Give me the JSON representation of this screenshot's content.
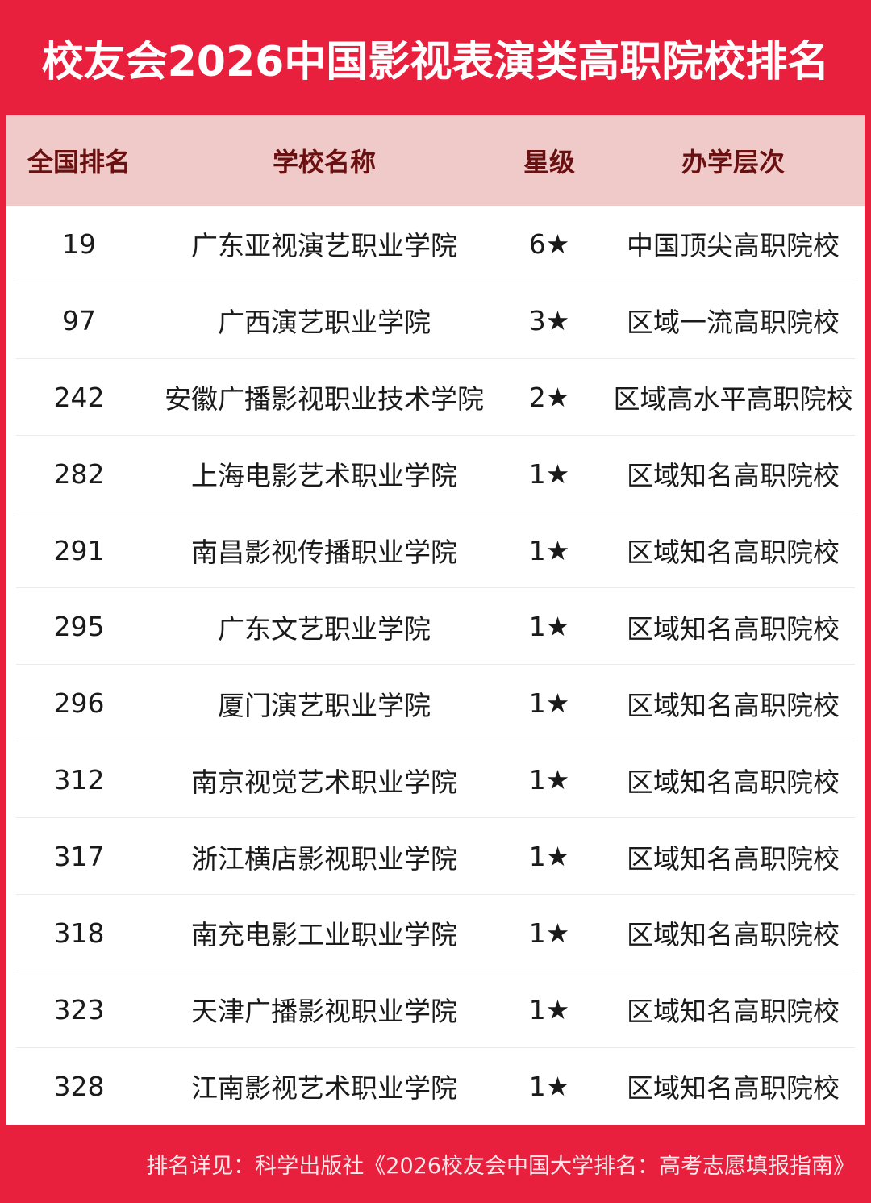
{
  "title": "校友会2026中国影视表演类高职院校排名",
  "colors": {
    "background": "#e8203e",
    "header_bg": "#f0c9c9",
    "header_text": "#6a1010"
  },
  "table": {
    "headers": [
      "全国排名",
      "学校名称",
      "星级",
      "办学层次"
    ],
    "rows": [
      [
        "19",
        "广东亚视演艺职业学院",
        "6★",
        "中国顶尖高职院校"
      ],
      [
        "97",
        "广西演艺职业学院",
        "3★",
        "区域一流高职院校"
      ],
      [
        "242",
        "安徽广播影视职业技术学院",
        "2★",
        "区域高水平高职院校"
      ],
      [
        "282",
        "上海电影艺术职业学院",
        "1★",
        "区域知名高职院校"
      ],
      [
        "291",
        "南昌影视传播职业学院",
        "1★",
        "区域知名高职院校"
      ],
      [
        "295",
        "广东文艺职业学院",
        "1★",
        "区域知名高职院校"
      ],
      [
        "296",
        "厦门演艺职业学院",
        "1★",
        "区域知名高职院校"
      ],
      [
        "312",
        "南京视觉艺术职业学院",
        "1★",
        "区域知名高职院校"
      ],
      [
        "317",
        "浙江横店影视职业学院",
        "1★",
        "区域知名高职院校"
      ],
      [
        "318",
        "南充电影工业职业学院",
        "1★",
        "区域知名高职院校"
      ],
      [
        "323",
        "天津广播影视职业学院",
        "1★",
        "区域知名高职院校"
      ],
      [
        "328",
        "江南影视艺术职业学院",
        "1★",
        "区域知名高职院校"
      ]
    ]
  },
  "footer": "排名详见：科学出版社《2026校友会中国大学排名：高考志愿填报指南》"
}
